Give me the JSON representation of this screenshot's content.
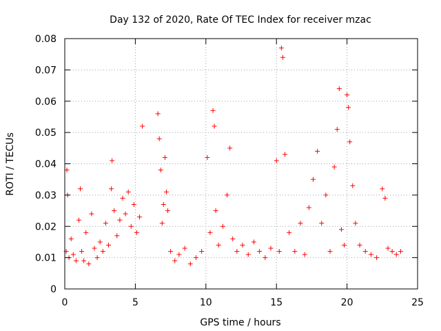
{
  "chart_data": {
    "type": "scatter",
    "title": "Day 132 of 2020, Rate Of TEC Index for receiver mzac",
    "xlabel": "GPS time / hours",
    "ylabel": "ROTI / TECUs",
    "xlim": [
      0,
      25
    ],
    "ylim": [
      0,
      0.08
    ],
    "x_ticks": [
      "0",
      "5",
      "10",
      "15",
      "20",
      "25"
    ],
    "y_ticks": [
      "0",
      "0.01",
      "0.02",
      "0.03",
      "0.04",
      "0.05",
      "0.06",
      "0.07",
      "0.08"
    ],
    "grid": true,
    "legend": "none",
    "marker": "+",
    "color": "#ff0000",
    "series": [
      {
        "x": [
          0.1,
          0.15,
          0.2,
          0.3,
          0.45,
          0.6,
          0.8,
          1.0,
          1.1,
          1.2,
          1.35,
          1.5,
          1.7,
          1.9,
          2.1,
          2.3,
          2.5,
          2.7,
          2.9,
          3.1,
          3.3,
          3.35,
          3.5,
          3.7,
          3.9,
          4.1,
          4.3,
          4.5,
          4.7,
          4.9,
          5.1,
          5.3,
          5.5,
          6.6,
          6.7,
          6.8,
          6.9,
          7.0,
          7.1,
          7.2,
          7.3,
          7.5,
          7.8,
          8.1,
          8.5,
          8.9,
          9.3,
          9.7,
          10.1,
          10.3,
          10.5,
          10.6,
          10.7,
          10.9,
          11.2,
          11.5,
          11.7,
          11.9,
          12.2,
          12.6,
          13.0,
          13.4,
          13.8,
          14.2,
          14.6,
          15.0,
          15.2,
          15.35,
          15.45,
          15.6,
          15.9,
          16.3,
          16.7,
          17.0,
          17.3,
          17.6,
          17.9,
          18.2,
          18.5,
          18.8,
          19.1,
          19.3,
          19.45,
          19.6,
          19.8,
          20.0,
          20.1,
          20.2,
          20.4,
          20.6,
          20.9,
          21.3,
          21.7,
          22.1,
          22.5,
          22.7,
          22.9,
          23.2,
          23.5,
          23.8
        ],
        "y": [
          0.012,
          0.038,
          0.03,
          0.01,
          0.016,
          0.011,
          0.009,
          0.022,
          0.032,
          0.012,
          0.009,
          0.018,
          0.008,
          0.024,
          0.013,
          0.01,
          0.015,
          0.012,
          0.021,
          0.014,
          0.032,
          0.041,
          0.025,
          0.017,
          0.022,
          0.029,
          0.024,
          0.031,
          0.02,
          0.027,
          0.018,
          0.023,
          0.052,
          0.056,
          0.048,
          0.038,
          0.021,
          0.027,
          0.042,
          0.031,
          0.025,
          0.012,
          0.009,
          0.011,
          0.013,
          0.008,
          0.01,
          0.012,
          0.042,
          0.018,
          0.057,
          0.052,
          0.025,
          0.014,
          0.02,
          0.03,
          0.045,
          0.016,
          0.012,
          0.014,
          0.011,
          0.015,
          0.012,
          0.01,
          0.013,
          0.041,
          0.012,
          0.077,
          0.074,
          0.043,
          0.018,
          0.012,
          0.021,
          0.011,
          0.026,
          0.035,
          0.044,
          0.021,
          0.03,
          0.012,
          0.039,
          0.051,
          0.064,
          0.019,
          0.014,
          0.062,
          0.058,
          0.047,
          0.033,
          0.021,
          0.014,
          0.012,
          0.011,
          0.01,
          0.032,
          0.029,
          0.013,
          0.012,
          0.011,
          0.012
        ]
      }
    ]
  }
}
